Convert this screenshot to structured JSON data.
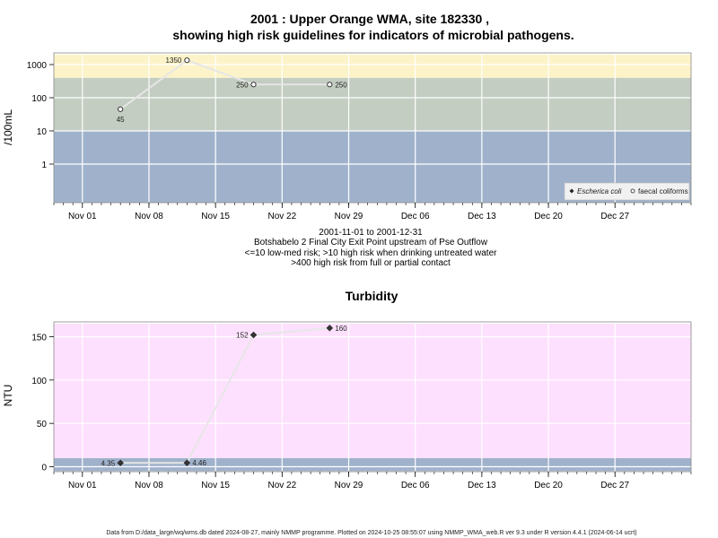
{
  "chart_data": [
    {
      "type": "line",
      "title": "2001 : Upper Orange WMA, site 182330 ,",
      "subtitle": "showing high risk guidelines for indicators of microbial pathogens.",
      "ylabel": "/100mL",
      "y_scale": "log",
      "y_ticks": [
        "1",
        "10",
        "100",
        "1000"
      ],
      "x_ticks": [
        "Nov 01",
        "Nov 08",
        "Nov 15",
        "Nov 22",
        "Nov 29",
        "Dec 06",
        "Dec 13",
        "Dec 20",
        "Dec 27"
      ],
      "x_range": [
        "2001-10-29",
        "2002-01-04"
      ],
      "bands": [
        {
          "from": 0.07,
          "to": 10,
          "color": "#a0b2cb"
        },
        {
          "from": 10,
          "to": 400,
          "color": "#c3cdc1"
        },
        {
          "from": 400,
          "to": 2000,
          "color": "#fdf3c8"
        }
      ],
      "grid": true,
      "legend_position": "bottom-right",
      "series": [
        {
          "name": "Escherica coli",
          "marker": "filled-diamond",
          "points": []
        },
        {
          "name": "faecal coliforms",
          "marker": "open-circle",
          "points": [
            {
              "date": "2001-11-05",
              "value": 45,
              "label": "45"
            },
            {
              "date": "2001-11-12",
              "value": 1350,
              "label": "1350"
            },
            {
              "date": "2001-11-19",
              "value": 250,
              "label": "250"
            },
            {
              "date": "2001-11-27",
              "value": 250,
              "label": "250"
            }
          ]
        }
      ],
      "caption": [
        "2001-11-01 to 2001-12-31",
        "Botshabelo 2 Final City Exit Point upstream of Pse Outflow",
        "<=10 low-med risk; >10 high risk when drinking untreated water",
        ">400 high risk from full or partial contact"
      ]
    },
    {
      "type": "line",
      "title": "Turbidity",
      "ylabel": "NTU",
      "y_scale": "linear",
      "ylim": [
        -5,
        165
      ],
      "y_ticks": [
        "0",
        "50",
        "100",
        "150"
      ],
      "x_ticks": [
        "Nov 01",
        "Nov 08",
        "Nov 15",
        "Nov 22",
        "Nov 29",
        "Dec 06",
        "Dec 13",
        "Dec 20",
        "Dec 27"
      ],
      "x_range": [
        "2001-10-29",
        "2002-01-04"
      ],
      "bands": [
        {
          "from": -5,
          "to": 10,
          "color": "#a0b2cb"
        },
        {
          "from": 10,
          "to": 165,
          "color": "#fde0fd"
        }
      ],
      "grid": true,
      "series": [
        {
          "name": "",
          "marker": "filled-diamond",
          "points": [
            {
              "date": "2001-11-05",
              "value": 4.35,
              "label": "4.35"
            },
            {
              "date": "2001-11-12",
              "value": 4.46,
              "label": "4.46"
            },
            {
              "date": "2001-11-19",
              "value": 152,
              "label": "152"
            },
            {
              "date": "2001-11-27",
              "value": 160,
              "label": "160"
            }
          ]
        }
      ]
    }
  ],
  "footer": "Data from D:/data_large/wq/wms.db dated 2024-08-27, mainly NMMP programme. Plotted on 2024-10-25 08:55:07 using NMMP_WMA_web.R ver 9.3 under R version 4.4.1 (2024-06-14 ucrt)"
}
